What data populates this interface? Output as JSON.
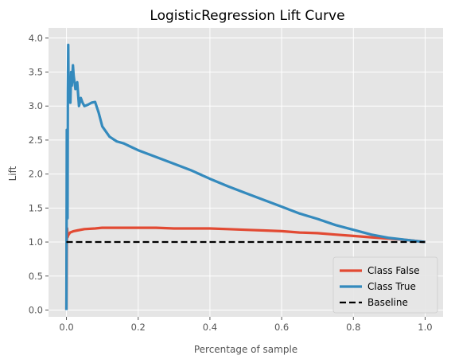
{
  "chart_data": {
    "type": "line",
    "title": "LogisticRegression Lift Curve",
    "xlabel": "Percentage of sample",
    "ylabel": "Lift",
    "xlim": [
      -0.05,
      1.05
    ],
    "ylim": [
      -0.1,
      4.15
    ],
    "x_ticks": [
      "0.0",
      "0.2",
      "0.4",
      "0.6",
      "0.8",
      "1.0"
    ],
    "y_ticks": [
      "0.0",
      "0.5",
      "1.0",
      "1.5",
      "2.0",
      "2.5",
      "3.0",
      "3.5",
      "4.0"
    ],
    "grid": true,
    "legend_position": "lower-right",
    "background_color": "#e5e5e5",
    "grid_color": "#ffffff",
    "series": [
      {
        "name": "Class False",
        "color": "#e24a33",
        "style": "solid",
        "x": [
          0.0,
          0.001,
          0.002,
          0.003,
          0.005,
          0.01,
          0.02,
          0.03,
          0.05,
          0.08,
          0.1,
          0.15,
          0.2,
          0.25,
          0.3,
          0.35,
          0.4,
          0.45,
          0.5,
          0.55,
          0.6,
          0.65,
          0.7,
          0.75,
          0.8,
          0.85,
          0.9,
          0.95,
          1.0
        ],
        "y": [
          0.0,
          1.0,
          1.2,
          1.07,
          1.1,
          1.14,
          1.16,
          1.17,
          1.19,
          1.2,
          1.21,
          1.21,
          1.21,
          1.21,
          1.2,
          1.2,
          1.2,
          1.19,
          1.18,
          1.17,
          1.16,
          1.14,
          1.13,
          1.11,
          1.09,
          1.07,
          1.05,
          1.03,
          1.0
        ]
      },
      {
        "name": "Class True",
        "color": "#348abd",
        "style": "solid",
        "x": [
          0.0,
          0.001,
          0.002,
          0.003,
          0.004,
          0.005,
          0.006,
          0.007,
          0.009,
          0.011,
          0.013,
          0.015,
          0.018,
          0.02,
          0.025,
          0.03,
          0.035,
          0.04,
          0.045,
          0.05,
          0.06,
          0.07,
          0.08,
          0.09,
          0.1,
          0.12,
          0.14,
          0.16,
          0.18,
          0.2,
          0.25,
          0.3,
          0.35,
          0.4,
          0.45,
          0.5,
          0.55,
          0.6,
          0.65,
          0.7,
          0.75,
          0.8,
          0.85,
          0.9,
          0.95,
          1.0
        ],
        "y": [
          0.0,
          2.65,
          2.0,
          1.35,
          3.2,
          3.9,
          3.05,
          3.25,
          3.35,
          3.05,
          3.5,
          3.3,
          3.6,
          3.45,
          3.25,
          3.35,
          3.0,
          3.12,
          3.05,
          3.0,
          3.02,
          3.05,
          3.06,
          2.9,
          2.7,
          2.55,
          2.48,
          2.45,
          2.4,
          2.35,
          2.25,
          2.15,
          2.05,
          1.93,
          1.82,
          1.72,
          1.62,
          1.52,
          1.42,
          1.34,
          1.25,
          1.18,
          1.11,
          1.06,
          1.03,
          1.0
        ]
      },
      {
        "name": "Baseline",
        "color": "#000000",
        "style": "dashed",
        "x": [
          0.0,
          1.0
        ],
        "y": [
          1.0,
          1.0
        ]
      }
    ]
  }
}
